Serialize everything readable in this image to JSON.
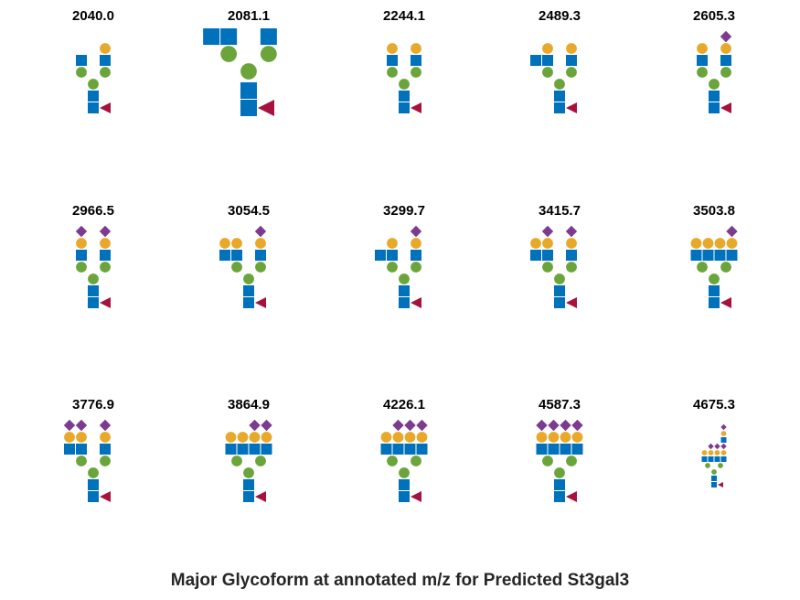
{
  "title": "Major Glycoform at annotated m/z for Predicted St3gal3",
  "colors": {
    "glcnac_square": "#0072BC",
    "mannose_circle": "#6BA43A",
    "galactose_circle": "#E8A92B",
    "sialic_diamond": "#7D3B8F",
    "fucose_triangle": "#A7113D"
  },
  "glycoforms": [
    {
      "mz": "2040.0",
      "antennae": [
        {
          "lacnac": false,
          "sia": false
        },
        {
          "lacnac": true,
          "sia": false
        }
      ],
      "bisect": false
    },
    {
      "mz": "2081.1",
      "antennae": [
        {
          "lacnac": false,
          "sia": false
        },
        {
          "lacnac": false,
          "sia": false
        }
      ],
      "bisect": true,
      "big": true
    },
    {
      "mz": "2244.1",
      "antennae": [
        {
          "lacnac": true,
          "sia": false
        },
        {
          "lacnac": true,
          "sia": false
        }
      ],
      "bisect": false
    },
    {
      "mz": "2489.3",
      "antennae": [
        {
          "lacnac": true,
          "sia": false
        },
        {
          "lacnac": true,
          "sia": false
        }
      ],
      "bisect": true
    },
    {
      "mz": "2605.3",
      "antennae": [
        {
          "lacnac": true,
          "sia": false
        },
        {
          "lacnac": true,
          "sia": true
        }
      ],
      "bisect": false
    },
    {
      "mz": "2966.5",
      "antennae": [
        {
          "lacnac": true,
          "sia": true
        },
        {
          "lacnac": true,
          "sia": true
        }
      ],
      "bisect": false
    },
    {
      "mz": "3054.5",
      "antennae": [
        {
          "lacnac": true,
          "sia": false
        },
        {
          "lacnac": true,
          "sia": false
        },
        {
          "lacnac": true,
          "sia": true
        }
      ],
      "bisect": false
    },
    {
      "mz": "3299.7",
      "antennae": [
        {
          "lacnac": false,
          "sia": false
        },
        {
          "lacnac": true,
          "sia": false
        },
        {
          "lacnac": true,
          "sia": true
        }
      ],
      "bisect": true
    },
    {
      "mz": "3415.7",
      "antennae": [
        {
          "lacnac": true,
          "sia": false
        },
        {
          "lacnac": true,
          "sia": true
        },
        {
          "lacnac": true,
          "sia": true
        }
      ],
      "bisect": false
    },
    {
      "mz": "3503.8",
      "antennae": [
        {
          "lacnac": true,
          "sia": false
        },
        {
          "lacnac": true,
          "sia": false
        },
        {
          "lacnac": true,
          "sia": false
        },
        {
          "lacnac": true,
          "sia": true
        }
      ],
      "bisect": false
    },
    {
      "mz": "3776.9",
      "antennae": [
        {
          "lacnac": true,
          "sia": true
        },
        {
          "lacnac": true,
          "sia": true
        },
        {
          "lacnac": true,
          "sia": true
        }
      ],
      "bisect": false
    },
    {
      "mz": "3864.9",
      "antennae": [
        {
          "lacnac": true,
          "sia": false
        },
        {
          "lacnac": true,
          "sia": false
        },
        {
          "lacnac": true,
          "sia": true
        },
        {
          "lacnac": true,
          "sia": true
        }
      ],
      "bisect": false
    },
    {
      "mz": "4226.1",
      "antennae": [
        {
          "lacnac": true,
          "sia": false
        },
        {
          "lacnac": true,
          "sia": true
        },
        {
          "lacnac": true,
          "sia": true
        },
        {
          "lacnac": true,
          "sia": true
        }
      ],
      "bisect": false
    },
    {
      "mz": "4587.3",
      "antennae": [
        {
          "lacnac": true,
          "sia": true
        },
        {
          "lacnac": true,
          "sia": true
        },
        {
          "lacnac": true,
          "sia": true
        },
        {
          "lacnac": true,
          "sia": true
        }
      ],
      "bisect": false
    },
    {
      "mz": "4675.3",
      "antennae": [
        {
          "lacnac": true,
          "sia": false
        },
        {
          "lacnac": true,
          "sia": true
        },
        {
          "lacnac": true,
          "sia": true
        },
        {
          "lacnac": true,
          "sia": true
        },
        {
          "lacnac": true,
          "sia": true,
          "extra": true
        }
      ],
      "bisect": false,
      "small": true
    }
  ]
}
